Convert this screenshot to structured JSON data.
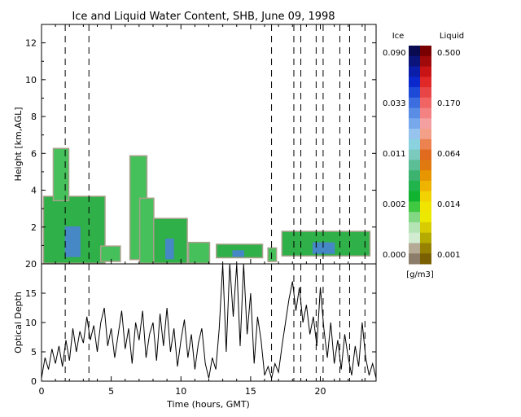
{
  "title": "Ice and Liquid Water Content, SHB, June 09, 1998",
  "chart_data": [
    {
      "type": "heatmap",
      "title": "Ice and Liquid Water Content, SHB, June 09, 1998",
      "ylabel": "Height [km,AGL]",
      "xlim": [
        0,
        24
      ],
      "ylim": [
        0,
        13
      ],
      "yticks": [
        "2",
        "4",
        "6",
        "8",
        "10",
        "12"
      ],
      "vertical_dashed_lines_hours": [
        1.7,
        3.4,
        16.5,
        18.1,
        18.6,
        19.7,
        20.2,
        21.4,
        22.1,
        23.2
      ],
      "cloud_regions": [
        {
          "start": 0.1,
          "end": 4.6,
          "base": 0.0,
          "top": 3.7,
          "phase": "mixed"
        },
        {
          "start": 0.8,
          "end": 2.0,
          "base": 3.4,
          "top": 6.3,
          "phase": "liquid"
        },
        {
          "start": 4.2,
          "end": 5.7,
          "base": 0.1,
          "top": 1.0,
          "phase": "liquid"
        },
        {
          "start": 6.3,
          "end": 7.6,
          "base": 0.2,
          "top": 5.9,
          "phase": "liquid"
        },
        {
          "start": 7.0,
          "end": 8.1,
          "base": 0.0,
          "top": 3.6,
          "phase": "liquid"
        },
        {
          "start": 8.0,
          "end": 10.5,
          "base": 0.0,
          "top": 2.5,
          "phase": "mixed"
        },
        {
          "start": 10.5,
          "end": 12.1,
          "base": 0.0,
          "top": 1.2,
          "phase": "liquid"
        },
        {
          "start": 12.5,
          "end": 15.9,
          "base": 0.3,
          "top": 1.1,
          "phase": "mixed"
        },
        {
          "start": 16.2,
          "end": 16.9,
          "base": 0.1,
          "top": 0.9,
          "phase": "liquid"
        },
        {
          "start": 17.2,
          "end": 23.6,
          "base": 0.4,
          "top": 1.8,
          "phase": "mixed"
        }
      ],
      "colorbar": {
        "ice_label": "Ice",
        "liquid_label": "Liquid",
        "units": "[g/m3]",
        "ice_ticks": [
          "0.090",
          "0.033",
          "0.011",
          "0.002",
          "0.000"
        ],
        "liquid_ticks": [
          "0.500",
          "0.170",
          "0.064",
          "0.014",
          "0.001"
        ],
        "ice_colors": [
          "#0a0a50",
          "#0a147a",
          "#0a1eaa",
          "#0a28cc",
          "#1e4ad8",
          "#3c6ee0",
          "#5a8ee6",
          "#78a8ec",
          "#96c4ee",
          "#8ad2e0",
          "#7ccabe",
          "#5cbe94",
          "#3cb470",
          "#22b44c",
          "#10b430",
          "#40c840",
          "#82d882",
          "#b4e4b4",
          "#d2ecd2",
          "#b4aa96",
          "#8c7c6a"
        ],
        "liquid_colors": [
          "#780000",
          "#a00a0a",
          "#c81414",
          "#e02828",
          "#e84646",
          "#f06464",
          "#f48282",
          "#f4a0a0",
          "#f4a088",
          "#ec8250",
          "#e06a1e",
          "#e07a10",
          "#e89600",
          "#eeb400",
          "#f2d200",
          "#f0e400",
          "#ece800",
          "#d8cc00",
          "#b4aa00",
          "#968200",
          "#7a6000"
        ]
      }
    },
    {
      "type": "line",
      "xlabel": "Time (hours, GMT)",
      "ylabel": "Optical Depth",
      "xlim": [
        0,
        24
      ],
      "ylim": [
        0,
        20
      ],
      "xticks": [
        "0",
        "5",
        "10",
        "15",
        "20"
      ],
      "yticks": [
        "0",
        "5",
        "10",
        "15",
        "20"
      ],
      "x": [
        0.0,
        0.25,
        0.5,
        0.75,
        1.0,
        1.25,
        1.5,
        1.75,
        2.0,
        2.25,
        2.5,
        2.75,
        3.0,
        3.25,
        3.5,
        3.75,
        4.0,
        4.25,
        4.5,
        4.75,
        5.0,
        5.25,
        5.5,
        5.75,
        6.0,
        6.25,
        6.5,
        6.75,
        7.0,
        7.25,
        7.5,
        7.75,
        8.0,
        8.25,
        8.5,
        8.75,
        9.0,
        9.25,
        9.5,
        9.75,
        10.0,
        10.25,
        10.5,
        10.75,
        11.0,
        11.25,
        11.5,
        11.75,
        12.0,
        12.25,
        12.5,
        12.75,
        13.0,
        13.25,
        13.5,
        13.75,
        14.0,
        14.25,
        14.5,
        14.75,
        15.0,
        15.25,
        15.5,
        15.75,
        16.0,
        16.25,
        16.5,
        16.75,
        17.0,
        17.25,
        17.5,
        17.75,
        18.0,
        18.25,
        18.5,
        18.75,
        19.0,
        19.25,
        19.5,
        19.75,
        20.0,
        20.25,
        20.5,
        20.75,
        21.0,
        21.25,
        21.5,
        21.75,
        22.0,
        22.25,
        22.5,
        22.75,
        23.0,
        23.25,
        23.5,
        23.75,
        24.0
      ],
      "y": [
        0.5,
        4.0,
        2.0,
        5.5,
        3.0,
        6.0,
        2.5,
        7.0,
        3.5,
        9.0,
        5.0,
        8.5,
        6.5,
        11.0,
        7.0,
        9.5,
        5.0,
        10.0,
        12.5,
        6.0,
        9.0,
        4.0,
        8.0,
        12.0,
        5.5,
        9.0,
        3.0,
        10.0,
        7.0,
        12.0,
        4.0,
        8.0,
        10.0,
        3.5,
        11.5,
        6.0,
        12.5,
        5.0,
        9.0,
        2.5,
        7.0,
        10.5,
        4.0,
        8.0,
        2.0,
        6.5,
        9.0,
        3.0,
        0.5,
        4.0,
        2.0,
        9.0,
        20.0,
        5.0,
        20.0,
        11.0,
        20.0,
        6.0,
        20.0,
        8.0,
        15.0,
        3.0,
        11.0,
        7.0,
        1.0,
        2.5,
        0.5,
        3.0,
        1.5,
        6.0,
        10.0,
        14.0,
        17.0,
        12.0,
        16.0,
        10.0,
        13.0,
        8.0,
        11.0,
        6.0,
        16.0,
        9.0,
        4.0,
        10.0,
        3.0,
        7.0,
        2.0,
        8.0,
        4.0,
        1.0,
        6.0,
        2.5,
        10.0,
        4.0,
        1.0,
        3.0,
        0.5
      ]
    }
  ]
}
